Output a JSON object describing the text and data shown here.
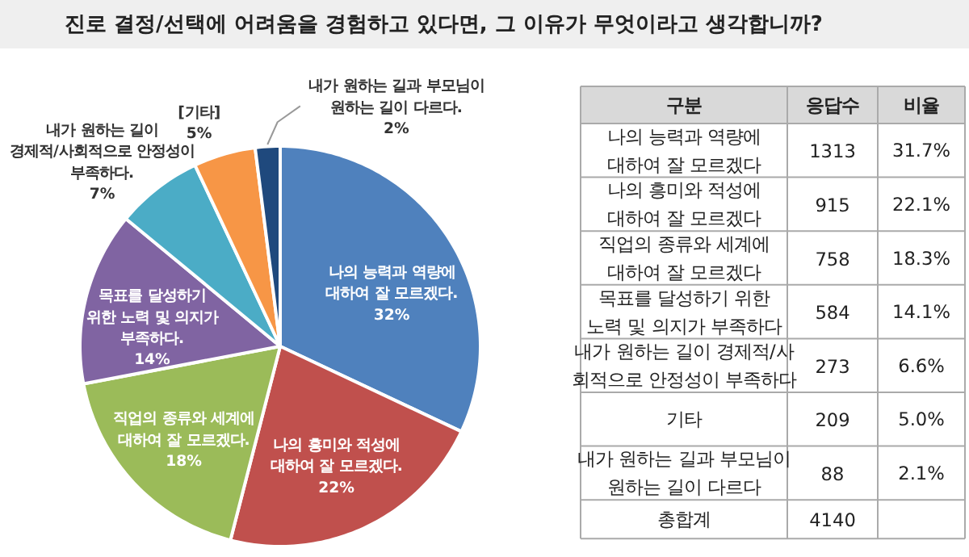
{
  "chart_data": [
    {
      "type": "pie",
      "title": "진로 결정/선택에 어려움을 경험하고 있다면, 그 이유가 무엇이라고 생각합니까?",
      "categories": [
        "나의 능력과 역량에\n대하여 잘 모르겠다.",
        "나의 흥미와 적성에\n대하여 잘 모르겠다.",
        "직업의 종류와 세계에\n대하여 잘 모르겠다.",
        "목표를 달성하기\n위한 노력 및 의지가\n부족하다.",
        "내가 원하는 길이\n경제적/사회적으로 안정성이\n부족하다.",
        "[기타]",
        "내가 원하는 길과 부모님이\n원하는 길이 다르다."
      ],
      "values": [
        32,
        22,
        18,
        14,
        7,
        5,
        2
      ],
      "value_labels": [
        "32%",
        "22%",
        "18%",
        "14%",
        "7%",
        "5%",
        "2%"
      ],
      "colors": [
        "#4f81bd",
        "#c0504d",
        "#9bbb59",
        "#8064a2",
        "#4bacc6",
        "#f79646",
        "#1f497d"
      ]
    },
    {
      "type": "other",
      "xlabel": "구분",
      "categories": [
        "나의 능력과 역량에\n대하여 잘 모르겠다",
        "나의 흥미와 적성에\n대하여 잘 모르겠다",
        "직업의 종류와 세계에\n대하여 잘 모르겠다",
        "목표를 달성하기 위한\n노력 및 의지가 부족하다",
        "내가 원하는 길이 경제적/사\n회적으로 안정성이 부족하다",
        "기타",
        "내가 원하는 길과 부모님이\n원하는 길이 다르다"
      ],
      "series": [
        {
          "name": "응답수",
          "values": [
            1313,
            915,
            758,
            584,
            273,
            209,
            88
          ]
        },
        {
          "name": "비율",
          "values": [
            31.7,
            22.1,
            18.3,
            14.1,
            6.6,
            5.0,
            2.1
          ],
          "value_labels": [
            "31.7%",
            "22.1%",
            "18.3%",
            "14.1%",
            "6.6%",
            "5.0%",
            "2.1%"
          ]
        }
      ],
      "data_labels": true,
      "annotations": [
        "총합계"
      ],
      "totals": [
        "4140"
      ]
    }
  ]
}
